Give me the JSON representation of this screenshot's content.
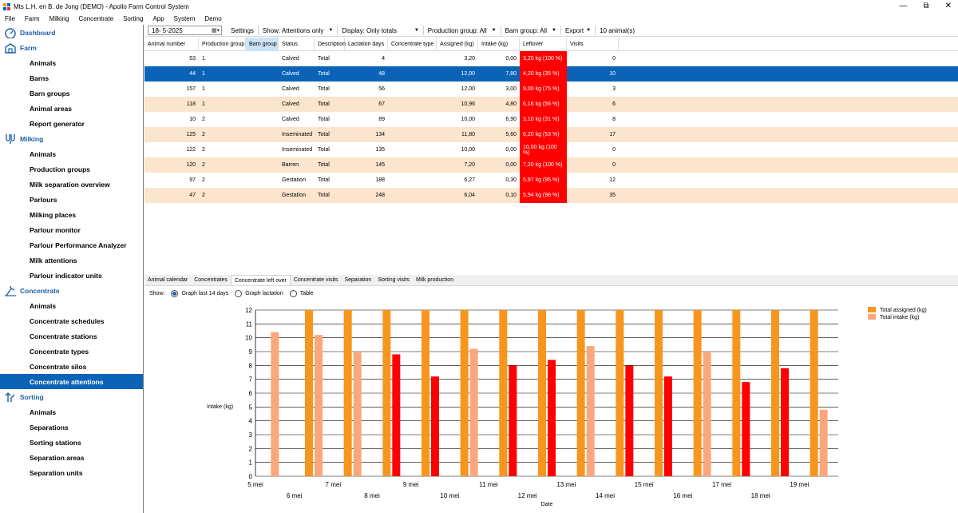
{
  "window": {
    "title": "Mts L.H. en B. de Jong (DEMO) - Apollo Farm Control System",
    "controls": [
      "—",
      "⧉",
      "✕"
    ]
  },
  "menu": [
    "File",
    "Farm",
    "Milking",
    "Concentrate",
    "Sorting",
    "App",
    "System",
    "Demo"
  ],
  "sidebar": {
    "dashboard": "Dashboard",
    "farm": {
      "label": "Farm",
      "items": [
        "Animals",
        "Barns",
        "Barn groups",
        "Animal areas",
        "Report generator"
      ]
    },
    "milking": {
      "label": "Milking",
      "items": [
        "Animals",
        "Production groups",
        "Milk separation overview",
        "Parlours",
        "Milking places",
        "Parlour monitor",
        "Parlour Performance Analyzer",
        "Milk attentions",
        "Parlour indicator units"
      ]
    },
    "concentrate": {
      "label": "Concentrate",
      "items": [
        "Animals",
        "Concentrate schedules",
        "Concentrate stations",
        "Concentrate types",
        "Concentrate silos",
        "Concentrate attentions"
      ],
      "active_index": 5
    },
    "sorting": {
      "label": "Sorting",
      "items": [
        "Animals",
        "Separations",
        "Sorting stations",
        "Separation areas",
        "Separation units"
      ]
    }
  },
  "toolbar": {
    "date": "18-  5-2025",
    "settings": "Settings",
    "show": "Show: Attentions only",
    "display": "Display: Only totals",
    "production_group": "Production group: All",
    "barn_group": "Barn group: All",
    "export": "Export",
    "count": "10 animal(s)"
  },
  "grid": {
    "columns": [
      "Animal number",
      "Production group",
      "Barn group",
      "Status",
      "Description",
      "Lactation days",
      "Concentrate type",
      "Assigned (kg)",
      "Intake (kg)",
      "Leftover",
      "Visits"
    ],
    "selected_column": 2,
    "selected_row": 1,
    "rows": [
      [
        "53",
        "1",
        "",
        "Calved",
        "Total",
        "4",
        "",
        "3,20",
        "0,00",
        "3,20 kg (100 %)",
        "0"
      ],
      [
        "44",
        "1",
        "",
        "Calved",
        "Total",
        "48",
        "",
        "12,00",
        "7,80",
        "4,20 kg (35 %)",
        "10"
      ],
      [
        "157",
        "1",
        "",
        "Calved",
        "Total",
        "56",
        "",
        "12,00",
        "3,00",
        "9,00 kg (75 %)",
        "3"
      ],
      [
        "118",
        "1",
        "",
        "Calved",
        "Total",
        "67",
        "",
        "10,96",
        "4,80",
        "6,16 kg (56 %)",
        "6"
      ],
      [
        "10",
        "2",
        "",
        "Calved",
        "Total",
        "89",
        "",
        "10,00",
        "6,90",
        "3,10 kg (31 %)",
        "8"
      ],
      [
        "125",
        "2",
        "",
        "Inseminated",
        "Total",
        "134",
        "",
        "11,80",
        "5,60",
        "6,20 kg (53 %)",
        "17"
      ],
      [
        "122",
        "2",
        "",
        "Inseminated",
        "Total",
        "135",
        "",
        "10,00",
        "0,00",
        "10,00 kg (100 %)",
        "0"
      ],
      [
        "120",
        "2",
        "",
        "Barren",
        "Total",
        "145",
        "",
        "7,20",
        "0,00",
        "7,20 kg (100 %)",
        "0"
      ],
      [
        "97",
        "2",
        "",
        "Gestation",
        "Total",
        "188",
        "",
        "6,27",
        "0,30",
        "5,97 kg (95 %)",
        "12"
      ],
      [
        "47",
        "2",
        "",
        "Gestation",
        "Total",
        "248",
        "",
        "6,04",
        "0,10",
        "5,94 kg (98 %)",
        "35"
      ]
    ]
  },
  "tabs": [
    "Animal calendar",
    "Concentrates",
    "Concentrate left over",
    "Concentrate visits",
    "Separation",
    "Sorting visits",
    "Milk production"
  ],
  "active_tab": 2,
  "show_options": {
    "label": "Show:",
    "options": [
      "Graph last 14 days",
      "Graph lactation",
      "Table"
    ],
    "selected": 0
  },
  "colors": {
    "assigned": "#f7961d",
    "intake_light": "#fba77d",
    "intake_alert": "#fe0000",
    "accent": "#0b63b7",
    "row_alt": "#fbe5cd"
  },
  "chart_data": {
    "type": "bar",
    "categories": [
      "5 mei",
      "6 mei",
      "7 mei",
      "8 mei",
      "9 mei",
      "10 mei",
      "11 mei",
      "12 mei",
      "13 mei",
      "14 mei",
      "15 mei",
      "16 mei",
      "17 mei",
      "18 mei",
      "19 mei"
    ],
    "series": [
      {
        "name": "Total assigned (kg)",
        "values": [
          null,
          12,
          12,
          12,
          12,
          12,
          12,
          12,
          12,
          12,
          12,
          12,
          12,
          12,
          12
        ]
      },
      {
        "name": "Total intake (kg)",
        "values": [
          10.4,
          10.2,
          9.0,
          8.8,
          7.2,
          9.2,
          8.0,
          8.4,
          9.4,
          8.0,
          7.2,
          9.0,
          6.8,
          7.8,
          4.8
        ],
        "alert": [
          false,
          false,
          false,
          true,
          true,
          false,
          true,
          true,
          false,
          true,
          true,
          false,
          true,
          true,
          false
        ]
      }
    ],
    "ylabel": "Intake (kg)",
    "xlabel": "Date",
    "ylim": [
      0,
      12
    ],
    "yticks": [
      0,
      1,
      2,
      3,
      4,
      5,
      6,
      7,
      8,
      9,
      10,
      11,
      12
    ],
    "grid": true,
    "legend": "top-right"
  }
}
